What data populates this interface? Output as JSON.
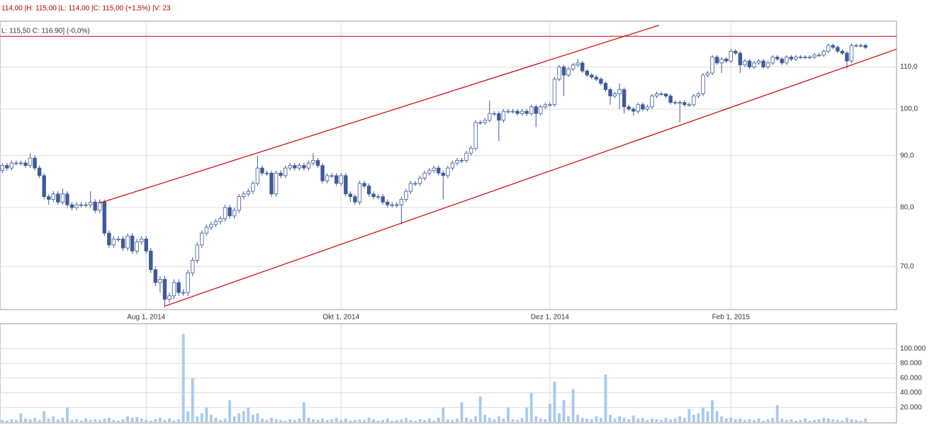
{
  "chart_data": {
    "type": "candlestick",
    "info": "114,00 |H: 115,00 |L: 114,00 |C: 115,00 (+1,5%) |V: 23",
    "subinfo": "L: 115,50  C: 116,90] (-0,0%)",
    "categories": [
      null,
      null,
      null,
      null,
      null,
      null,
      null,
      null,
      null,
      null,
      null,
      null,
      null,
      null,
      null,
      null,
      null,
      null,
      null,
      null,
      null,
      null,
      null,
      null,
      null,
      null,
      null,
      null,
      null,
      null,
      null,
      "Aug 1, 2014",
      null,
      null,
      null,
      null,
      null,
      null,
      null,
      null,
      null,
      null,
      null,
      null,
      null,
      null,
      null,
      null,
      null,
      null,
      null,
      null,
      null,
      null,
      null,
      null,
      null,
      null,
      null,
      null,
      null,
      null,
      null,
      null,
      null,
      null,
      null,
      null,
      null,
      null,
      null,
      null,
      null,
      "Okt 1, 2014",
      null,
      null,
      null,
      null,
      null,
      null,
      null,
      null,
      null,
      null,
      null,
      null,
      null,
      null,
      null,
      null,
      null,
      null,
      null,
      null,
      null,
      null,
      null,
      null,
      null,
      null,
      null,
      null,
      null,
      null,
      null,
      null,
      null,
      null,
      null,
      null,
      null,
      null,
      null,
      null,
      null,
      null,
      null,
      null,
      "Dez 1, 2014",
      null,
      null,
      null,
      null,
      null,
      null,
      null,
      null,
      null,
      null,
      null,
      null,
      null,
      null,
      null,
      null,
      null,
      null,
      null,
      null,
      null,
      null,
      null,
      null,
      null,
      null,
      null,
      null,
      null,
      null,
      null,
      null,
      null,
      null,
      null,
      null,
      null,
      null,
      "Feb 1, 2015",
      null,
      null,
      null,
      null,
      null,
      null,
      null,
      null,
      null,
      null,
      null,
      null,
      null,
      null,
      null,
      null,
      null,
      null,
      null,
      null,
      null,
      null,
      null,
      null,
      null,
      null,
      null,
      null,
      null
    ],
    "open": [
      87,
      88,
      87.5,
      88.5,
      88.5,
      88.5,
      88,
      89.5,
      87.5,
      86,
      82,
      81.5,
      82.5,
      81,
      82.5,
      80.5,
      80,
      80.5,
      80.5,
      80.5,
      81,
      79.5,
      81,
      75.5,
      73.5,
      74.5,
      74.5,
      73,
      75,
      72.5,
      74,
      74.5,
      72.5,
      69.5,
      67.5,
      68,
      65,
      65.5,
      67.5,
      66,
      66,
      69,
      71,
      73.5,
      75.5,
      76.5,
      77,
      77.5,
      78,
      80,
      78.5,
      79.5,
      82,
      82.5,
      83,
      84.5,
      87.5,
      86.5,
      86.5,
      82.5,
      86.5,
      86,
      87.5,
      88,
      87.5,
      88,
      87.5,
      88.5,
      89,
      88,
      85,
      86,
      86,
      84.5,
      86,
      82.5,
      82,
      81,
      84.5,
      84,
      82.5,
      82,
      82,
      81,
      80.5,
      80.5,
      80.5,
      81.5,
      83,
      84.5,
      84.5,
      85.5,
      86.5,
      87,
      87.5,
      86.5,
      86,
      87.5,
      88.5,
      89,
      89,
      90.5,
      91.5,
      97,
      97,
      97.5,
      99,
      99,
      97.5,
      99.5,
      99.5,
      99.5,
      99,
      99.5,
      99,
      100.5,
      99,
      100.5,
      101,
      101,
      107,
      110,
      108,
      109.5,
      110.5,
      111,
      109,
      108,
      107.5,
      107,
      106,
      104.5,
      103,
      103.5,
      104.5,
      100.5,
      100,
      99.5,
      101,
      100,
      100.5,
      103,
      103.5,
      103.5,
      103,
      101.5,
      101.5,
      101.5,
      101,
      101,
      103,
      103.5,
      108,
      108.5,
      112.5,
      111,
      112,
      111.5,
      114,
      113.5,
      110.5,
      111.5,
      110,
      111,
      111.5,
      110,
      111,
      112.5,
      112,
      111,
      112.5,
      112,
      112.5,
      112.5,
      112.5,
      112.5,
      113,
      113,
      114,
      115.5,
      115,
      114,
      113.5,
      111.5,
      115.5,
      115.5,
      115.5
    ],
    "high": [
      88.5,
      88.5,
      89,
      89,
      89,
      89,
      90.5,
      90,
      88,
      86.5,
      82.5,
      83,
      83,
      83.5,
      83,
      81,
      81,
      81,
      81,
      83,
      81.5,
      81.5,
      81.5,
      76,
      75,
      75,
      75,
      75.5,
      75.5,
      74.5,
      75,
      75,
      73,
      70,
      68.5,
      68.5,
      66,
      68,
      68,
      66.5,
      69.5,
      71.5,
      74,
      76,
      77,
      77.5,
      78,
      78.5,
      80.5,
      80.5,
      80,
      82.5,
      83,
      83.5,
      85,
      90,
      88,
      87,
      87,
      87,
      87,
      88,
      88.5,
      88.5,
      88.5,
      88.5,
      89,
      90.5,
      89.5,
      88.5,
      86.5,
      86.5,
      86.5,
      86.5,
      86.5,
      83,
      82.5,
      85,
      85,
      84.5,
      83,
      82.5,
      82.5,
      81.5,
      81,
      81,
      82,
      83.5,
      85,
      85,
      86,
      87,
      87.5,
      88,
      88,
      87,
      88,
      89,
      89.5,
      89.5,
      91,
      92,
      97.5,
      97.5,
      98,
      102,
      99.5,
      99.5,
      100,
      100,
      100,
      100,
      100,
      100,
      101,
      101,
      101,
      101.5,
      101.5,
      107.5,
      110.5,
      110.5,
      110,
      111,
      112,
      111.5,
      109.5,
      108.5,
      108,
      107.5,
      106.5,
      105,
      104,
      106,
      105,
      101,
      100.5,
      101.5,
      101.5,
      101,
      103.5,
      104,
      104,
      103.5,
      103.5,
      102,
      102,
      102,
      101.5,
      103.5,
      104,
      108.5,
      109,
      113,
      113,
      112.5,
      112.5,
      114.5,
      114.5,
      114,
      112,
      112,
      111.5,
      112,
      112,
      111.5,
      113,
      113,
      112.5,
      113,
      113,
      113,
      113,
      113,
      113,
      113.5,
      113.5,
      114.5,
      116,
      116,
      115.5,
      114.5,
      114,
      116,
      116,
      116,
      116
    ],
    "low": [
      86.5,
      87,
      87,
      88,
      88,
      87.5,
      87.5,
      87,
      85.5,
      81.5,
      80.5,
      81,
      80.5,
      80.5,
      80,
      79.5,
      79.5,
      80,
      80,
      80,
      79,
      79,
      75,
      73,
      73,
      74,
      72.5,
      72.5,
      72,
      72,
      73.5,
      72,
      69,
      67,
      66,
      63.8,
      64.5,
      65,
      65.5,
      65.5,
      65.5,
      68.5,
      70.5,
      73,
      75,
      76,
      76.5,
      77,
      77.5,
      78,
      78,
      79,
      81.5,
      82,
      82.5,
      84,
      86,
      86,
      82,
      82,
      85.5,
      85.5,
      87,
      87,
      87,
      87,
      87,
      88,
      87.5,
      84.5,
      84.5,
      85.5,
      84,
      84,
      82,
      81,
      80.5,
      80.5,
      83.5,
      82,
      81.5,
      81.5,
      80.5,
      80,
      80,
      80,
      77,
      81,
      82.5,
      84,
      84,
      85,
      86,
      86.5,
      86,
      81.5,
      85.5,
      87,
      88,
      88.5,
      88.5,
      90,
      91,
      96.5,
      96.5,
      97,
      98.5,
      93,
      97,
      99,
      99,
      98.5,
      98.5,
      98.5,
      98.5,
      96,
      98.5,
      100,
      100.5,
      100.5,
      106.5,
      103,
      107.5,
      109,
      110,
      108.5,
      107.5,
      107,
      106.5,
      105.5,
      104,
      101,
      102.5,
      100,
      99,
      99.5,
      98.5,
      99,
      99.5,
      99.5,
      100,
      102.5,
      103,
      102.5,
      101,
      101,
      97,
      100.5,
      100.5,
      100.5,
      102.5,
      103,
      107.5,
      108,
      110.5,
      108.5,
      111,
      111,
      113,
      108.5,
      110,
      109.5,
      109.5,
      110.5,
      109.5,
      109.5,
      110.5,
      111.5,
      110.5,
      110.5,
      111.5,
      111.5,
      112,
      112,
      112,
      112,
      112.5,
      112.5,
      113.5,
      114.5,
      113.5,
      113,
      109.5,
      111,
      115,
      115,
      114.5
    ],
    "close": [
      88,
      87.5,
      88.5,
      88.5,
      88.5,
      88,
      89.5,
      87.5,
      86,
      82,
      81.5,
      82.5,
      81,
      82.5,
      80.5,
      80,
      80.5,
      80.5,
      80.5,
      81,
      79.5,
      81,
      75.5,
      73.5,
      74.5,
      74.5,
      73,
      75,
      72.5,
      74,
      74.5,
      72.5,
      69.5,
      67.5,
      68,
      65,
      65.5,
      67.5,
      66,
      66,
      69,
      71,
      73.5,
      75.5,
      76.5,
      77,
      77.5,
      78,
      80,
      78.5,
      79.5,
      82,
      82.5,
      83,
      84.5,
      87.5,
      86.5,
      86.5,
      82.5,
      86.5,
      86,
      87.5,
      88,
      87.5,
      88,
      87.5,
      88.5,
      89,
      88,
      85,
      86,
      86,
      84.5,
      86,
      82.5,
      82,
      81,
      84.5,
      84,
      82.5,
      82,
      82,
      81,
      80.5,
      80.5,
      80.5,
      81.5,
      83,
      84.5,
      84.5,
      85.5,
      86.5,
      87,
      87.5,
      86.5,
      86,
      87.5,
      88.5,
      89,
      89,
      90.5,
      91.5,
      97,
      97,
      97.5,
      99,
      99,
      97.5,
      99.5,
      99.5,
      99.5,
      99,
      99.5,
      99,
      100.5,
      99,
      100.5,
      101,
      101,
      107,
      110,
      108,
      109.5,
      110.5,
      111,
      109,
      108,
      107.5,
      107,
      106,
      104.5,
      103,
      103.5,
      104.5,
      100.5,
      100,
      99.5,
      101,
      100,
      100.5,
      103,
      103.5,
      103.5,
      103,
      101.5,
      101.5,
      101.5,
      101,
      101,
      103,
      103.5,
      108,
      108.5,
      112.5,
      111,
      112,
      111.5,
      114,
      113.5,
      110.5,
      111.5,
      110,
      111,
      111.5,
      110,
      111,
      112.5,
      112,
      111,
      112.5,
      112,
      112.5,
      112.5,
      112.5,
      112.5,
      113,
      113,
      114,
      115.5,
      115,
      114,
      113.5,
      111.5,
      115.5,
      115.5,
      115.5,
      115
    ],
    "up_color": "#ffffff",
    "down_color": "#3d5a99",
    "edge_color": "#3d5a99",
    "ylim": [
      63.5,
      122
    ],
    "log_y": true,
    "grid": true,
    "yticks": [
      {
        "value": 70,
        "label": "70,0"
      },
      {
        "value": 80,
        "label": "80,0"
      },
      {
        "value": 90,
        "label": "90,0"
      },
      {
        "value": 100,
        "label": "100,0"
      },
      {
        "value": 110,
        "label": "110,0"
      }
    ],
    "line_color": "#cc0000",
    "level": 117.9,
    "trend_lines": [
      {
        "x": [
          20.9,
          141.5
        ],
        "values": [
          80.8,
          120.9
        ]
      },
      {
        "x": [
          35.1,
          195.7
        ],
        "values": [
          64,
          115.8
        ]
      }
    ],
    "volume": {
      "color": "#a9cbef",
      "ylim": [
        0,
        134000
      ],
      "yticks": [
        {
          "value": 20000,
          "label": "20.000"
        },
        {
          "value": 40000,
          "label": "40.000"
        },
        {
          "value": 60000,
          "label": "60.000"
        },
        {
          "value": 80000,
          "label": "80.000"
        },
        {
          "value": 100000,
          "label": "100.000"
        }
      ],
      "values": [
        3000,
        2000,
        4000,
        3000,
        12000,
        5000,
        4000,
        6000,
        3000,
        15000,
        5000,
        8000,
        4000,
        6000,
        20000,
        3000,
        4000,
        2000,
        5000,
        3000,
        4000,
        3000,
        5000,
        6000,
        3000,
        2000,
        4000,
        8000,
        6000,
        7000,
        5000,
        3000,
        2000,
        4000,
        6000,
        3000,
        5000,
        2000,
        4000,
        120000,
        15000,
        60000,
        8000,
        12000,
        20000,
        10000,
        6000,
        3000,
        5000,
        30000,
        8000,
        12000,
        15000,
        20000,
        10000,
        12000,
        5000,
        3000,
        6000,
        4000,
        3000,
        2000,
        4000,
        3000,
        5000,
        27000,
        6000,
        4000,
        3000,
        5000,
        3000,
        4000,
        6000,
        3000,
        5000,
        2000,
        3000,
        4000,
        3000,
        6000,
        4000,
        2000,
        3000,
        5000,
        2000,
        3000,
        4000,
        6000,
        3000,
        2000,
        4000,
        3000,
        5000,
        2000,
        6000,
        20000,
        4000,
        3000,
        5000,
        27000,
        6000,
        4000,
        8000,
        35000,
        10000,
        6000,
        4000,
        8000,
        5000,
        20000,
        4000,
        3000,
        6000,
        20000,
        40000,
        8000,
        5000,
        4000,
        25000,
        55000,
        12000,
        30000,
        8000,
        45000,
        10000,
        6000,
        5000,
        4000,
        8000,
        6000,
        65000,
        10000,
        5000,
        8000,
        6000,
        4000,
        9000,
        5000,
        6000,
        3000,
        5000,
        4000,
        3000,
        6000,
        4000,
        5000,
        8000,
        6000,
        18000,
        10000,
        12000,
        20000,
        15000,
        30000,
        15000,
        8000,
        5000,
        6000,
        4000,
        5000,
        3000,
        4000,
        3000,
        5000,
        2000,
        4000,
        6000,
        23000,
        5000,
        3000,
        4000,
        2000,
        3000,
        5000,
        2000,
        3000,
        4000,
        6000,
        5000,
        4000,
        3000,
        2000,
        6000,
        4000,
        3000,
        2000,
        5000
      ]
    }
  }
}
